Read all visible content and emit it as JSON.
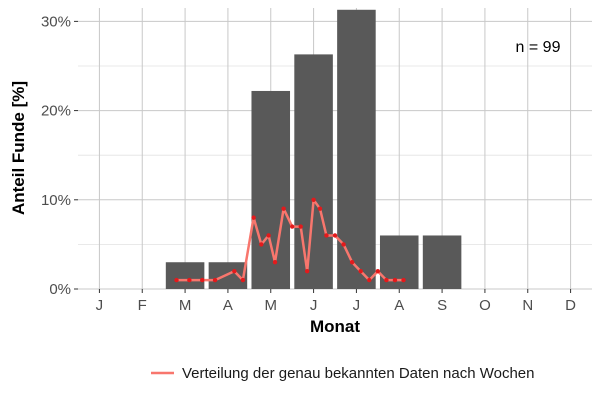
{
  "chart_data": {
    "type": "bar",
    "categories": [
      "J",
      "F",
      "M",
      "A",
      "M",
      "J",
      "J",
      "A",
      "S",
      "O",
      "N",
      "D"
    ],
    "values": [
      0,
      0,
      3,
      3,
      22.2,
      26.3,
      31.3,
      6,
      6,
      0,
      0,
      0
    ],
    "xlabel": "Monat",
    "ylabel": "Anteil Funde [%]",
    "ylim": [
      0,
      31.5
    ],
    "yticks": [
      0,
      10,
      20,
      30
    ],
    "ytick_labels": [
      "0%",
      "10%",
      "20%",
      "30%"
    ],
    "grid": true,
    "annotation": "n = 99",
    "legend_position": "bottom-right",
    "line_series": {
      "name": "Verteilung der genau bekannten Daten nach Wochen",
      "color": "#f8766d",
      "point_color": "#e31a1c",
      "x": [
        2.8,
        3.1,
        3.4,
        3.7,
        4.15,
        4.35,
        4.6,
        4.78,
        4.95,
        5.1,
        5.3,
        5.5,
        5.7,
        5.85,
        6.0,
        6.15,
        6.3,
        6.5,
        6.7,
        6.9,
        7.1,
        7.3,
        7.5,
        7.7,
        7.9,
        8.1
      ],
      "y": [
        1,
        1,
        1,
        1,
        2,
        1,
        8,
        5,
        6,
        3,
        9,
        7,
        7,
        2,
        10,
        9,
        6,
        6,
        5,
        3,
        2,
        1,
        2,
        1,
        1,
        1
      ]
    }
  }
}
